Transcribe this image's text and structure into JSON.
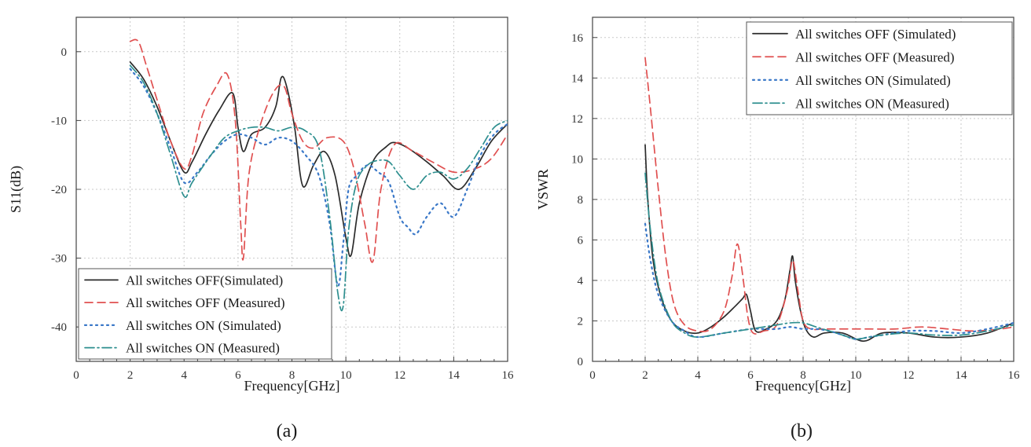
{
  "chart_data": [
    {
      "type": "line",
      "caption": "(a)",
      "xlabel": "Frequency[GHz]",
      "ylabel": "S11(dB)",
      "xlim": [
        0,
        16
      ],
      "ylim": [
        -45,
        5
      ],
      "xticks": [
        0,
        2,
        4,
        6,
        8,
        10,
        12,
        14,
        16
      ],
      "yticks": [
        0,
        -10,
        -20,
        -30,
        -40
      ],
      "grid": true,
      "legend_position": "bottom-left",
      "series": [
        {
          "name": "All switches OFF(Simulated)",
          "color": "#2b2b2b",
          "dash": "solid",
          "x": [
            2,
            2.5,
            3,
            3.5,
            4,
            4.3,
            4.8,
            5.3,
            5.8,
            6.0,
            6.2,
            6.5,
            7,
            7.4,
            7.6,
            7.8,
            8.1,
            8.4,
            8.8,
            9.2,
            9.6,
            10.0,
            10.2,
            10.5,
            11,
            11.5,
            11.8,
            12.3,
            13,
            13.6,
            14.2,
            14.8,
            15.4,
            16
          ],
          "y": [
            -1.5,
            -4,
            -8,
            -13,
            -17.5,
            -16,
            -12,
            -8.5,
            -6,
            -11,
            -14.5,
            -12,
            -11,
            -8,
            -3.8,
            -5,
            -11,
            -19.5,
            -16.5,
            -14.5,
            -18,
            -27,
            -29.5,
            -22,
            -16,
            -13.8,
            -13.2,
            -14,
            -16,
            -18,
            -20,
            -17,
            -13,
            -10.5
          ]
        },
        {
          "name": "All switches OFF (Measured)",
          "color": "#e05050",
          "dash": "10 6",
          "x": [
            2,
            2.3,
            2.6,
            3,
            3.5,
            4.0,
            4.3,
            4.7,
            5.2,
            5.6,
            5.9,
            6.1,
            6.2,
            6.4,
            6.8,
            7.3,
            7.7,
            8.0,
            8.4,
            8.8,
            9.3,
            9.9,
            10.3,
            10.7,
            11.0,
            11.3,
            11.8,
            12.5,
            13.2,
            14,
            14.8,
            15.4,
            16
          ],
          "y": [
            1.5,
            1.5,
            -2,
            -7,
            -13,
            -17,
            -15,
            -9,
            -5,
            -3.3,
            -10,
            -25,
            -30,
            -18,
            -11,
            -6,
            -5,
            -9,
            -13,
            -14,
            -12.5,
            -13,
            -17,
            -25,
            -30.5,
            -20,
            -13.5,
            -14.5,
            -16,
            -17.5,
            -17,
            -15.5,
            -12
          ]
        },
        {
          "name": "All switches ON  (Simulated)",
          "color": "#3a78c8",
          "dash": "2 5",
          "x": [
            2,
            2.5,
            3,
            3.5,
            4.0,
            4.5,
            5,
            5.5,
            6,
            6.5,
            7,
            7.5,
            8,
            8.5,
            9,
            9.4,
            9.7,
            9.9,
            10.1,
            10.4,
            10.8,
            11.2,
            11.6,
            12.0,
            12.3,
            12.6,
            13.0,
            13.5,
            14.0,
            14.5,
            15,
            15.5,
            16
          ],
          "y": [
            -2.5,
            -5,
            -9,
            -14,
            -19,
            -17.5,
            -15,
            -13,
            -12,
            -12.5,
            -13.5,
            -12.5,
            -13,
            -15,
            -18,
            -25,
            -34,
            -28,
            -20,
            -18,
            -16.5,
            -17.5,
            -19,
            -24,
            -25.5,
            -26.5,
            -24,
            -22,
            -24,
            -20,
            -15,
            -12,
            -10.5
          ]
        },
        {
          "name": "All switches ON  (Measured)",
          "color": "#2e8f8f",
          "dash": "12 4 2 4",
          "x": [
            2,
            2.5,
            3,
            3.5,
            4.0,
            4.3,
            5,
            5.5,
            6,
            6.5,
            7,
            7.5,
            8,
            8.5,
            9,
            9.4,
            9.7,
            9.9,
            10.1,
            10.4,
            10.8,
            11.2,
            11.6,
            12.0,
            12.5,
            13,
            13.5,
            14,
            14.5,
            15,
            15.5,
            16
          ],
          "y": [
            -2,
            -4.5,
            -9,
            -15,
            -21,
            -19,
            -15,
            -12.5,
            -11.5,
            -11,
            -11,
            -11.5,
            -11,
            -11.5,
            -14,
            -24,
            -35,
            -37,
            -26,
            -19,
            -16.5,
            -15.8,
            -16,
            -18,
            -20,
            -18,
            -17.5,
            -18.5,
            -17,
            -14,
            -11,
            -10
          ]
        }
      ]
    },
    {
      "type": "line",
      "caption": "(b)",
      "xlabel": "Frequency[GHz]",
      "ylabel": "VSWR",
      "xlim": [
        0,
        16
      ],
      "ylim": [
        0,
        17
      ],
      "xticks": [
        0,
        2,
        4,
        6,
        8,
        10,
        12,
        14,
        16
      ],
      "yticks": [
        0,
        2,
        4,
        6,
        8,
        10,
        12,
        14,
        16
      ],
      "grid": true,
      "legend_position": "top-right",
      "series": [
        {
          "name": "All switches OFF (Simulated)",
          "color": "#2b2b2b",
          "dash": "solid",
          "x": [
            2,
            2.1,
            2.3,
            2.6,
            3,
            3.5,
            4,
            4.5,
            5,
            5.4,
            5.7,
            5.85,
            6.0,
            6.2,
            6.6,
            7.0,
            7.3,
            7.5,
            7.6,
            7.7,
            7.9,
            8.1,
            8.4,
            8.8,
            9.5,
            10.3,
            11,
            12,
            13,
            14,
            15,
            16
          ],
          "y": [
            10.7,
            8,
            5,
            3.2,
            2,
            1.5,
            1.4,
            1.7,
            2.2,
            2.7,
            3.1,
            3.3,
            2.5,
            1.5,
            1.6,
            2.0,
            3.0,
            4.5,
            5.2,
            4.0,
            2.5,
            1.6,
            1.2,
            1.4,
            1.4,
            1.0,
            1.4,
            1.4,
            1.2,
            1.2,
            1.4,
            1.9
          ]
        },
        {
          "name": "All switches OFF (Measured)",
          "color": "#e05050",
          "dash": "10 6",
          "x": [
            2,
            2.2,
            2.5,
            2.8,
            3.1,
            3.5,
            4,
            4.5,
            5.0,
            5.3,
            5.5,
            5.7,
            5.9,
            6.1,
            6.5,
            7.0,
            7.4,
            7.6,
            7.8,
            8.0,
            8.3,
            8.8,
            9.5,
            10.5,
            11.5,
            12.5,
            13.5,
            14.5,
            15.5,
            16
          ],
          "y": [
            15,
            12.5,
            8.5,
            5,
            2.8,
            1.8,
            1.5,
            1.6,
            2.5,
            4.2,
            5.8,
            4.3,
            2.2,
            1.4,
            1.5,
            1.8,
            3.5,
            5.0,
            3.5,
            2.0,
            1.6,
            1.6,
            1.6,
            1.6,
            1.6,
            1.7,
            1.6,
            1.5,
            1.6,
            1.7
          ]
        },
        {
          "name": "All switches ON  (Simulated)",
          "color": "#3a78c8",
          "dash": "2 5",
          "x": [
            2,
            2.2,
            2.5,
            3,
            3.5,
            4,
            5,
            6,
            6.5,
            7,
            7.5,
            8,
            8.5,
            9,
            9.5,
            10,
            10.5,
            11,
            12,
            13,
            14,
            15,
            16
          ],
          "y": [
            6.8,
            5.0,
            3.3,
            2.0,
            1.5,
            1.2,
            1.4,
            1.6,
            1.6,
            1.6,
            1.7,
            1.6,
            1.6,
            1.5,
            1.3,
            1.1,
            1.2,
            1.3,
            1.5,
            1.5,
            1.4,
            1.6,
            1.9
          ]
        },
        {
          "name": "All switches ON  (Measured)",
          "color": "#2e8f8f",
          "dash": "12 4 2 4",
          "x": [
            2,
            2.2,
            2.5,
            3,
            3.5,
            4,
            5,
            6,
            6.5,
            7,
            7.5,
            8,
            8.5,
            9,
            9.5,
            10,
            10.5,
            11,
            12,
            13,
            14,
            15,
            16
          ],
          "y": [
            9.3,
            6.5,
            3.8,
            2.0,
            1.4,
            1.2,
            1.4,
            1.6,
            1.7,
            1.8,
            1.9,
            1.9,
            1.7,
            1.5,
            1.3,
            1.1,
            1.2,
            1.3,
            1.4,
            1.3,
            1.3,
            1.5,
            1.8
          ]
        }
      ]
    }
  ]
}
